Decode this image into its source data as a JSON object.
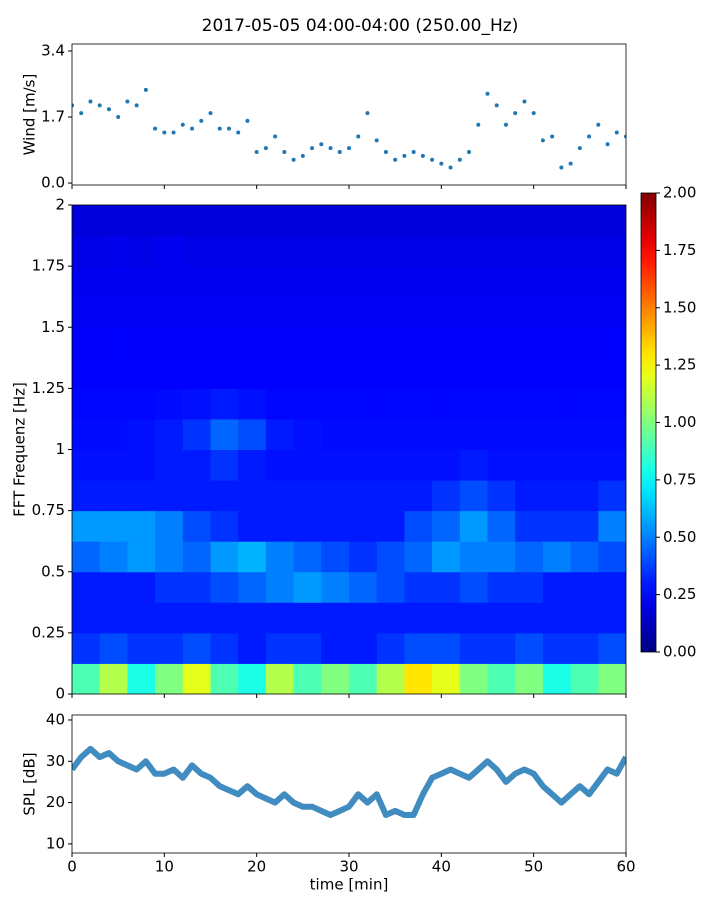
{
  "chart_data": [
    {
      "type": "scatter",
      "title": "2017-05-05 04:00-04:00 (250.00_Hz)",
      "ylabel": "Wind [m/s]",
      "color": "#1f77b4",
      "x": [
        0,
        1,
        2,
        3,
        4,
        5,
        6,
        7,
        8,
        9,
        10,
        11,
        12,
        13,
        14,
        15,
        16,
        17,
        18,
        19,
        20,
        21,
        22,
        23,
        24,
        25,
        26,
        27,
        28,
        29,
        30,
        31,
        32,
        33,
        34,
        35,
        36,
        37,
        38,
        39,
        40,
        41,
        42,
        43,
        44,
        45,
        46,
        47,
        48,
        49,
        50,
        51,
        52,
        53,
        54,
        55,
        56,
        57,
        58,
        59,
        60
      ],
      "values": [
        2.0,
        1.8,
        2.1,
        2.0,
        1.9,
        1.7,
        2.1,
        2.0,
        2.4,
        1.4,
        1.3,
        1.3,
        1.5,
        1.4,
        1.6,
        1.8,
        1.4,
        1.4,
        1.3,
        1.6,
        0.8,
        0.9,
        1.2,
        0.8,
        0.6,
        0.7,
        0.9,
        1.0,
        0.9,
        0.8,
        0.9,
        1.2,
        1.8,
        1.1,
        0.8,
        0.6,
        0.7,
        0.8,
        0.7,
        0.6,
        0.5,
        0.4,
        0.6,
        0.8,
        1.5,
        2.3,
        2.0,
        1.5,
        1.8,
        2.1,
        1.8,
        1.1,
        1.2,
        0.4,
        0.5,
        0.9,
        1.2,
        1.5,
        1.0,
        1.3,
        1.2
      ],
      "xlim": [
        0,
        60
      ],
      "ylim": [
        -0.05,
        3.58
      ],
      "yticks": [
        {
          "value": 0,
          "label": "0.0"
        },
        1.7,
        3.4
      ]
    },
    {
      "type": "heatmap",
      "ylabel": "FFT Frequenz [Hz]",
      "colormap": "jet",
      "xlim": [
        0,
        60
      ],
      "ylim": [
        0,
        2
      ],
      "yticks": [
        0,
        0.25,
        0.5,
        0.75,
        1,
        1.25,
        1.5,
        1.75,
        2
      ],
      "xbins": [
        0,
        3,
        6,
        9,
        12,
        15,
        18,
        21,
        24,
        27,
        30,
        33,
        36,
        39,
        42,
        45,
        48,
        51,
        54,
        57,
        60
      ],
      "ybins": [
        0,
        0.125,
        0.25,
        0.375,
        0.5,
        0.625,
        0.75,
        0.875,
        1,
        1.125,
        1.25,
        1.375,
        1.5,
        1.625,
        1.75,
        1.875,
        2
      ],
      "z": [
        [
          0.9,
          1.1,
          0.8,
          1.0,
          1.2,
          0.9,
          0.8,
          1.1,
          0.9,
          1.0,
          0.9,
          1.1,
          1.3,
          1.2,
          1.0,
          0.9,
          1.0,
          0.8,
          0.9,
          1.0
        ],
        [
          0.35,
          0.4,
          0.35,
          0.35,
          0.4,
          0.35,
          0.3,
          0.35,
          0.35,
          0.3,
          0.3,
          0.35,
          0.4,
          0.4,
          0.35,
          0.35,
          0.4,
          0.35,
          0.35,
          0.4
        ],
        [
          0.3,
          0.3,
          0.3,
          0.3,
          0.3,
          0.3,
          0.3,
          0.3,
          0.3,
          0.3,
          0.3,
          0.3,
          0.3,
          0.3,
          0.3,
          0.3,
          0.3,
          0.3,
          0.3,
          0.3
        ],
        [
          0.3,
          0.3,
          0.3,
          0.35,
          0.35,
          0.4,
          0.45,
          0.5,
          0.55,
          0.5,
          0.45,
          0.4,
          0.35,
          0.35,
          0.4,
          0.35,
          0.35,
          0.3,
          0.3,
          0.3
        ],
        [
          0.45,
          0.5,
          0.55,
          0.5,
          0.45,
          0.55,
          0.6,
          0.5,
          0.45,
          0.4,
          0.35,
          0.4,
          0.45,
          0.55,
          0.5,
          0.5,
          0.45,
          0.5,
          0.45,
          0.4
        ],
        [
          0.55,
          0.55,
          0.55,
          0.5,
          0.4,
          0.35,
          0.3,
          0.3,
          0.3,
          0.3,
          0.3,
          0.3,
          0.4,
          0.45,
          0.55,
          0.45,
          0.35,
          0.35,
          0.35,
          0.5
        ],
        [
          0.3,
          0.3,
          0.3,
          0.3,
          0.3,
          0.3,
          0.3,
          0.3,
          0.3,
          0.3,
          0.3,
          0.3,
          0.3,
          0.35,
          0.4,
          0.35,
          0.3,
          0.3,
          0.3,
          0.35
        ],
        [
          0.28,
          0.28,
          0.28,
          0.3,
          0.3,
          0.35,
          0.3,
          0.28,
          0.28,
          0.28,
          0.28,
          0.28,
          0.28,
          0.28,
          0.3,
          0.28,
          0.28,
          0.28,
          0.28,
          0.28
        ],
        [
          0.27,
          0.27,
          0.28,
          0.3,
          0.35,
          0.45,
          0.4,
          0.3,
          0.28,
          0.27,
          0.27,
          0.27,
          0.27,
          0.27,
          0.27,
          0.27,
          0.27,
          0.27,
          0.27,
          0.27
        ],
        [
          0.26,
          0.26,
          0.26,
          0.27,
          0.28,
          0.3,
          0.28,
          0.26,
          0.26,
          0.26,
          0.26,
          0.26,
          0.26,
          0.26,
          0.26,
          0.26,
          0.26,
          0.26,
          0.26,
          0.26
        ],
        [
          0.25,
          0.25,
          0.25,
          0.25,
          0.25,
          0.25,
          0.25,
          0.25,
          0.25,
          0.25,
          0.25,
          0.25,
          0.25,
          0.25,
          0.25,
          0.25,
          0.25,
          0.25,
          0.25,
          0.25
        ],
        [
          0.24,
          0.25,
          0.24,
          0.24,
          0.24,
          0.24,
          0.24,
          0.24,
          0.24,
          0.24,
          0.24,
          0.24,
          0.24,
          0.24,
          0.24,
          0.24,
          0.24,
          0.24,
          0.24,
          0.25
        ],
        [
          0.23,
          0.23,
          0.23,
          0.23,
          0.23,
          0.23,
          0.23,
          0.23,
          0.23,
          0.23,
          0.23,
          0.23,
          0.23,
          0.23,
          0.23,
          0.23,
          0.23,
          0.23,
          0.23,
          0.23
        ],
        [
          0.22,
          0.22,
          0.22,
          0.22,
          0.22,
          0.22,
          0.22,
          0.22,
          0.22,
          0.22,
          0.22,
          0.22,
          0.22,
          0.22,
          0.22,
          0.22,
          0.22,
          0.22,
          0.22,
          0.22
        ],
        [
          0.2,
          0.21,
          0.2,
          0.22,
          0.2,
          0.2,
          0.2,
          0.2,
          0.2,
          0.2,
          0.2,
          0.2,
          0.2,
          0.2,
          0.2,
          0.2,
          0.2,
          0.2,
          0.2,
          0.2
        ],
        [
          0.18,
          0.18,
          0.18,
          0.18,
          0.18,
          0.18,
          0.18,
          0.18,
          0.18,
          0.18,
          0.18,
          0.18,
          0.18,
          0.18,
          0.18,
          0.18,
          0.18,
          0.18,
          0.18,
          0.18
        ]
      ],
      "clim": [
        0,
        2
      ],
      "cticks": [
        {
          "value": 0,
          "label": "0.00"
        },
        {
          "value": 0.25,
          "label": "0.25"
        },
        {
          "value": 0.5,
          "label": "0.50"
        },
        {
          "value": 0.75,
          "label": "0.75"
        },
        {
          "value": 1,
          "label": "1.00"
        },
        {
          "value": 1.25,
          "label": "1.25"
        },
        {
          "value": 1.5,
          "label": "1.50"
        },
        {
          "value": 1.75,
          "label": "1.75"
        },
        {
          "value": 2,
          "label": "2.00"
        }
      ]
    },
    {
      "type": "line",
      "ylabel": "SPL [dB]",
      "xlabel": "time [min]",
      "color": "#1f77b4",
      "x": [
        0,
        1,
        2,
        3,
        4,
        5,
        6,
        7,
        8,
        9,
        10,
        11,
        12,
        13,
        14,
        15,
        16,
        17,
        18,
        19,
        20,
        21,
        22,
        23,
        24,
        25,
        26,
        27,
        28,
        29,
        30,
        31,
        32,
        33,
        34,
        35,
        36,
        37,
        38,
        39,
        40,
        41,
        42,
        43,
        44,
        45,
        46,
        47,
        48,
        49,
        50,
        51,
        52,
        53,
        54,
        55,
        56,
        57,
        58,
        59,
        60
      ],
      "values": [
        28,
        31,
        33,
        31,
        32,
        30,
        29,
        28,
        30,
        27,
        27,
        28,
        26,
        29,
        27,
        26,
        24,
        23,
        22,
        24,
        22,
        21,
        20,
        22,
        20,
        19,
        19,
        18,
        17,
        18,
        19,
        22,
        20,
        22,
        17,
        18,
        17,
        17,
        22,
        26,
        27,
        28,
        27,
        26,
        28,
        30,
        28,
        25,
        27,
        28,
        27,
        24,
        22,
        20,
        22,
        24,
        22,
        25,
        28,
        27,
        31
      ],
      "xlim": [
        0,
        60
      ],
      "ylim": [
        7.8,
        41.2
      ],
      "xticks": [
        0,
        10,
        20,
        30,
        40,
        50,
        60
      ],
      "yticks": [
        10,
        20,
        30,
        40
      ]
    }
  ]
}
